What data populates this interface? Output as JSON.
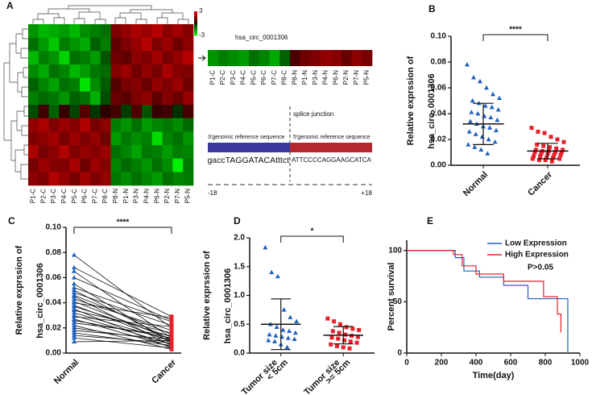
{
  "chart_data": [
    {
      "type": "heatmap",
      "panel": "A",
      "categories": [
        "P1-C",
        "P2-C",
        "P3-C",
        "P4-C",
        "P5-C",
        "P6-C",
        "P7-C",
        "P8-C",
        "P8-N",
        "P1-N",
        "P3-N",
        "P4-N",
        "P6-N",
        "P2-N",
        "P7-N",
        "P5-N"
      ],
      "values": [
        [
          -1.5,
          -2,
          -1.8,
          -1.6,
          -2,
          -1.4,
          -1.2,
          -1,
          1.2,
          1.5,
          1.8,
          1.6,
          2,
          1.4,
          1.7,
          1.3
        ],
        [
          -1,
          -1.6,
          -2.2,
          -1.2,
          -1.5,
          -1.8,
          -0.8,
          -1.2,
          0.8,
          1.2,
          1.5,
          2,
          1.2,
          1.6,
          1,
          1.4
        ],
        [
          -2,
          -1.2,
          -1.5,
          -2.4,
          -1,
          -1.2,
          -1.6,
          -0.6,
          1,
          0.8,
          1.4,
          1.2,
          1.7,
          1.1,
          1.5,
          2
        ],
        [
          -1.4,
          -1.8,
          -1,
          -1.3,
          -2,
          -1.6,
          -1.1,
          -0.9,
          1.3,
          1.6,
          1,
          1.5,
          1.1,
          1.8,
          1.3,
          1.2
        ],
        [
          -0.8,
          -1.3,
          -1.7,
          -1,
          -1.2,
          -2.6,
          -1.4,
          -0.7,
          0.6,
          1.1,
          1.3,
          0.9,
          1.5,
          1.2,
          1.6,
          1
        ],
        [
          -1.2,
          -0.9,
          -1.1,
          -1.5,
          -0.8,
          -1,
          -1.9,
          -0.5,
          0.9,
          0.7,
          1.2,
          1.4,
          0.8,
          1.3,
          0.9,
          1.5
        ],
        [
          -0.5,
          0.3,
          -0.8,
          0.2,
          -0.4,
          0.6,
          -0.2,
          0.1,
          0.4,
          -0.3,
          0.5,
          -0.6,
          0.2,
          0.3,
          -0.1,
          0.4
        ],
        [
          1.5,
          1.8,
          1.2,
          1.6,
          1.3,
          1.9,
          1.1,
          1.4,
          -1.2,
          -1.5,
          -1,
          -1.6,
          -1.3,
          -1.1,
          -1.4,
          -0.9
        ],
        [
          1.2,
          1.4,
          1.7,
          1.1,
          1.6,
          1.2,
          1.5,
          1,
          -1.6,
          -1.1,
          -1.4,
          -1.2,
          -2.5,
          -1.3,
          -1,
          -1.5
        ],
        [
          1.8,
          1.1,
          1.4,
          1.9,
          1.2,
          1.5,
          1.3,
          1.6,
          -1,
          -1.3,
          -1.7,
          -1.1,
          -1.2,
          -1.6,
          -1.2,
          -1.3
        ],
        [
          1.1,
          1.6,
          1.3,
          1.2,
          1.8,
          1,
          1.6,
          1.3,
          -1.3,
          -0.9,
          -1.2,
          -1.5,
          -1,
          -1.4,
          -2.8,
          -1.1
        ],
        [
          1.4,
          1.2,
          1.9,
          1.5,
          1.1,
          1.7,
          1.2,
          1.5,
          -1.1,
          -1.4,
          -1,
          -1.3,
          -1.6,
          -1,
          -1.3,
          -1.2
        ]
      ],
      "clim": [
        -3,
        3
      ],
      "cticks": [
        3,
        -3
      ],
      "inset": {
        "title": "hsa_circ_0001306",
        "categories": [
          "P1-C",
          "P2-C",
          "P3-C",
          "P4-C",
          "P5-C",
          "P6-C",
          "P7-C",
          "P8-C",
          "P8-N",
          "P1-N",
          "P3-N",
          "P4-N",
          "P6-N",
          "P2-N",
          "P7-N",
          "P5-N"
        ],
        "values": [
          -1.5,
          -1.2,
          -1.4,
          -1.6,
          -1,
          -1.3,
          -1.8,
          -0.8,
          0.5,
          1,
          1.2,
          1.5,
          1.3,
          0.9,
          1.4,
          1.1
        ]
      },
      "splice_label": "splice junction",
      "left_reference": "3'genomic reference sequence",
      "right_reference": "5'genomic reference sequence",
      "left_sequence": "gaccTAGGATACAtttct",
      "right_sequence": "ATTCCCCAGGAAGCATCA",
      "left_position": "-18",
      "right_position": "+18"
    },
    {
      "type": "dot",
      "panel": "B",
      "ylabel": [
        "Relative exprssion of",
        "hsa_circ_0001306"
      ],
      "significance": "****",
      "ylim": [
        0,
        0.1
      ],
      "yticks": [
        {
          "value": 0,
          "label": "0.00"
        },
        {
          "value": 0.02,
          "label": "0.02"
        },
        {
          "value": 0.04,
          "label": "0.04"
        },
        {
          "value": 0.06,
          "label": "0.06"
        },
        {
          "value": 0.08,
          "label": "0.08"
        },
        {
          "value": 0.1,
          "label": "0.10"
        }
      ],
      "series": [
        {
          "name": "Normal",
          "color": "#1f5fbf",
          "marker": "triangle",
          "mean": 0.032,
          "sd": 0.016,
          "values": [
            0.078,
            0.068,
            0.065,
            0.06,
            0.055,
            0.052,
            0.05,
            0.048,
            0.046,
            0.045,
            0.043,
            0.041,
            0.04,
            0.038,
            0.037,
            0.035,
            0.034,
            0.032,
            0.03,
            0.029,
            0.027,
            0.026,
            0.024,
            0.022,
            0.02,
            0.018,
            0.016,
            0.014,
            0.012,
            0.009
          ]
        },
        {
          "name": "Cancer",
          "color": "#e8202a",
          "marker": "square",
          "mean": 0.011,
          "sd": 0.006,
          "values": [
            0.029,
            0.026,
            0.025,
            0.022,
            0.02,
            0.018,
            0.016,
            0.015,
            0.014,
            0.013,
            0.012,
            0.012,
            0.011,
            0.011,
            0.01,
            0.01,
            0.01,
            0.009,
            0.009,
            0.008,
            0.008,
            0.007,
            0.007,
            0.006,
            0.006,
            0.005,
            0.005,
            0.004,
            0.004,
            0.003
          ]
        }
      ]
    },
    {
      "type": "paired",
      "panel": "C",
      "ylabel": [
        "Relative exprssion of",
        "hsa_circ_0001306"
      ],
      "significance": "****",
      "ylim": [
        0,
        0.1
      ],
      "yticks": [
        {
          "value": 0,
          "label": "0.00"
        },
        {
          "value": 0.02,
          "label": "0.02"
        },
        {
          "value": 0.04,
          "label": "0.04"
        },
        {
          "value": 0.06,
          "label": "0.06"
        },
        {
          "value": 0.08,
          "label": "0.08"
        },
        {
          "value": 0.1,
          "label": "0.10"
        }
      ],
      "series": [
        {
          "name": "Normal",
          "color": "#1f5fbf",
          "marker": "triangle",
          "values": [
            0.078,
            0.068,
            0.065,
            0.06,
            0.055,
            0.052,
            0.05,
            0.048,
            0.046,
            0.045,
            0.043,
            0.041,
            0.04,
            0.038,
            0.037,
            0.035,
            0.034,
            0.032,
            0.03,
            0.029,
            0.027,
            0.026,
            0.024,
            0.022,
            0.02,
            0.018,
            0.016,
            0.014,
            0.012,
            0.009
          ]
        },
        {
          "name": "Cancer",
          "color": "#e8202a",
          "marker": "square",
          "values": [
            0.02,
            0.029,
            0.012,
            0.026,
            0.008,
            0.025,
            0.01,
            0.022,
            0.015,
            0.006,
            0.018,
            0.011,
            0.028,
            0.009,
            0.013,
            0.004,
            0.016,
            0.01,
            0.007,
            0.021,
            0.005,
            0.012,
            0.014,
            0.003,
            0.009,
            0.011,
            0.006,
            0.008,
            0.004,
            0.01
          ]
        }
      ]
    },
    {
      "type": "dot",
      "panel": "D",
      "ylabel": [
        "Relative exprssion of",
        "hsa_circ_0001306"
      ],
      "significance": "*",
      "ylim": [
        0,
        2
      ],
      "yticks": [
        {
          "value": 0,
          "label": "0.0"
        },
        {
          "value": 0.5,
          "label": "0.5"
        },
        {
          "value": 1,
          "label": "1.0"
        },
        {
          "value": 1.5,
          "label": "1.5"
        },
        {
          "value": 2,
          "label": "2.0"
        }
      ],
      "series": [
        {
          "name": [
            "Tumor size",
            "< 5cm"
          ],
          "color": "#1f5fbf",
          "marker": "triangle",
          "mean": 0.5,
          "sd": 0.44,
          "values": [
            1.83,
            1.4,
            1.33,
            0.75,
            0.62,
            0.55,
            0.5,
            0.45,
            0.4,
            0.38,
            0.35,
            0.32,
            0.3,
            0.28,
            0.26,
            0.24,
            0.22,
            0.2,
            0.15,
            0.1
          ]
        },
        {
          "name": [
            "Tumor size",
            ">= 5cm"
          ],
          "color": "#e8202a",
          "marker": "square",
          "mean": 0.31,
          "sd": 0.15,
          "values": [
            0.6,
            0.55,
            0.5,
            0.45,
            0.42,
            0.4,
            0.38,
            0.35,
            0.32,
            0.3,
            0.28,
            0.27,
            0.25,
            0.22,
            0.2,
            0.18,
            0.15,
            0.12,
            0.1,
            0.08
          ]
        }
      ]
    },
    {
      "type": "line",
      "panel": "E",
      "xlabel": "Time(day)",
      "ylabel": "Percent survival",
      "annotation": "P>0.05",
      "xlim": [
        0,
        1000
      ],
      "xticks": [
        0,
        200,
        400,
        600,
        800,
        1000
      ],
      "ylim": [
        0,
        110
      ],
      "yticks": [
        0,
        50,
        100
      ],
      "legend": "upper right",
      "series": [
        {
          "name": "Low Expression",
          "color": "#1f5fbf",
          "x": [
            0,
            280,
            280,
            330,
            330,
            420,
            420,
            560,
            560,
            700,
            700,
            930,
            930
          ],
          "values": [
            100,
            100,
            93,
            93,
            80,
            80,
            74,
            74,
            66,
            66,
            53,
            53,
            0
          ]
        },
        {
          "name": "High Expression",
          "color": "#e8202a",
          "x": [
            0,
            270,
            270,
            320,
            320,
            400,
            400,
            560,
            560,
            790,
            790,
            870,
            870,
            890,
            890
          ],
          "values": [
            100,
            100,
            96,
            96,
            85,
            85,
            77,
            77,
            70,
            70,
            55,
            55,
            38,
            38,
            20
          ]
        }
      ]
    }
  ]
}
